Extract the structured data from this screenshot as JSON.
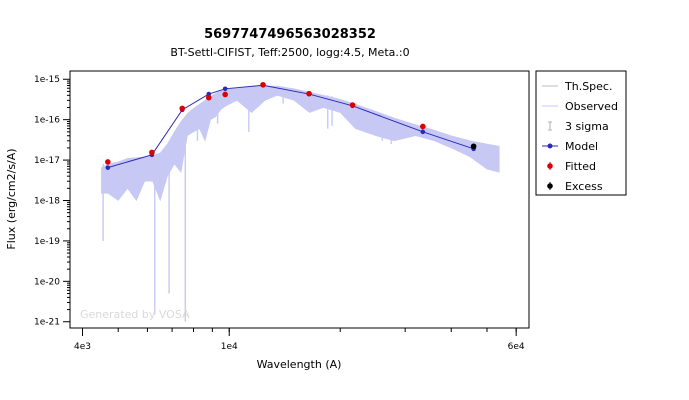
{
  "chart_data": {
    "type": "scatter",
    "title": "5697747496563028352",
    "subtitle": "BT-Settl-CIFIST, Teff:2500, logg:4.5, Meta.:0",
    "xlabel": "Wavelength (A)",
    "ylabel": "Flux (erg/cm2/s/A)",
    "x_scale": "log",
    "y_scale": "log",
    "xlim": [
      3700,
      65000
    ],
    "ylim": [
      7e-22,
      1.6e-15
    ],
    "x_ticks": [
      {
        "value": 4000,
        "label": "4e3"
      },
      {
        "value": 10000,
        "label": "1e4"
      },
      {
        "value": 60000,
        "label": "6e4"
      }
    ],
    "y_ticks": [
      {
        "value": 1e-15,
        "label": "1e-15"
      },
      {
        "value": 1e-16,
        "label": "1e-16"
      },
      {
        "value": 1e-17,
        "label": "1e-17"
      },
      {
        "value": 1e-18,
        "label": "1e-18"
      },
      {
        "value": 1e-19,
        "label": "1e-19"
      },
      {
        "value": 1e-20,
        "label": "1e-20"
      },
      {
        "value": 1e-21,
        "label": "1e-21"
      }
    ],
    "legend": {
      "position": "right",
      "entries": [
        "Th.Spec.",
        "Observed",
        "3 sigma",
        "Model",
        "Fitted",
        "Excess"
      ]
    },
    "colors": {
      "theoretical_spectrum": "#c8c8f5",
      "model": "#2b2bb8",
      "fitted": "#dd0000",
      "excess": "#000000",
      "three_sigma": "#b0b0b0"
    },
    "theoretical_spectrum": {
      "upper": [
        [
          4500,
          6.5e-18
        ],
        [
          4700,
          8e-18
        ],
        [
          5000,
          9e-18
        ],
        [
          5300,
          1.1e-17
        ],
        [
          5600,
          1.15e-17
        ],
        [
          5900,
          1.2e-17
        ],
        [
          6200,
          1.3e-17
        ],
        [
          6500,
          1.5e-17
        ],
        [
          6800,
          2.5e-17
        ],
        [
          7100,
          5e-17
        ],
        [
          7400,
          9e-17
        ],
        [
          7700,
          1.4e-16
        ],
        [
          8000,
          1.9e-16
        ],
        [
          8300,
          2.4e-16
        ],
        [
          8600,
          3e-16
        ],
        [
          8900,
          3.8e-16
        ],
        [
          9200,
          4.5e-16
        ],
        [
          9500,
          5.2e-16
        ],
        [
          9800,
          5.6e-16
        ],
        [
          10500,
          6e-16
        ],
        [
          11500,
          6.5e-16
        ],
        [
          12500,
          6.8e-16
        ],
        [
          13500,
          6.8e-16
        ],
        [
          15000,
          5.8e-16
        ],
        [
          16500,
          4.8e-16
        ],
        [
          18000,
          4e-16
        ],
        [
          20000,
          3.2e-16
        ],
        [
          22000,
          2.4e-16
        ],
        [
          25000,
          1.6e-16
        ],
        [
          28000,
          1.1e-16
        ],
        [
          32000,
          7.5e-17
        ],
        [
          36000,
          5.5e-17
        ],
        [
          40000,
          4e-17
        ],
        [
          45000,
          3e-17
        ],
        [
          50000,
          2.5e-17
        ],
        [
          54000,
          2.2e-17
        ]
      ],
      "lower": [
        [
          4500,
          1.5e-18
        ],
        [
          4700,
          1.5e-18
        ],
        [
          5000,
          1e-18
        ],
        [
          5300,
          2e-18
        ],
        [
          5600,
          1e-18
        ],
        [
          5900,
          3e-18
        ],
        [
          6200,
          3e-18
        ],
        [
          6500,
          1e-18
        ],
        [
          6800,
          4e-18
        ],
        [
          7100,
          8e-18
        ],
        [
          7400,
          5e-18
        ],
        [
          7700,
          4e-17
        ],
        [
          8000,
          5e-17
        ],
        [
          8300,
          6e-17
        ],
        [
          8600,
          3e-17
        ],
        [
          8900,
          1e-16
        ],
        [
          9200,
          1.2e-16
        ],
        [
          9500,
          1.8e-16
        ],
        [
          9800,
          2.2e-16
        ],
        [
          10500,
          3e-16
        ],
        [
          11500,
          1.5e-16
        ],
        [
          12500,
          3e-16
        ],
        [
          13500,
          4e-16
        ],
        [
          15000,
          3e-16
        ],
        [
          16500,
          1.5e-16
        ],
        [
          18000,
          2e-16
        ],
        [
          20000,
          1.5e-16
        ],
        [
          22000,
          6e-17
        ],
        [
          25000,
          4e-17
        ],
        [
          28000,
          3e-17
        ],
        [
          32000,
          4e-17
        ],
        [
          36000,
          3e-17
        ],
        [
          40000,
          2e-17
        ],
        [
          45000,
          1.2e-17
        ],
        [
          50000,
          6e-18
        ],
        [
          54000,
          5e-18
        ]
      ],
      "absorption_lines": [
        [
          4550,
          8e-18,
          1e-19
        ],
        [
          6280,
          1e-17,
          1.5e-21
        ],
        [
          6870,
          2.5e-17,
          5e-21
        ],
        [
          7600,
          1.2e-16,
          1e-21
        ],
        [
          8200,
          2e-16,
          3e-17
        ],
        [
          9300,
          4e-16,
          8e-17
        ],
        [
          11300,
          6e-16,
          5e-17
        ],
        [
          14000,
          6e-16,
          2.5e-16
        ],
        [
          18500,
          4e-16,
          6e-17
        ],
        [
          19000,
          3.8e-16,
          7e-17
        ],
        [
          26000,
          1.4e-16,
          3e-17
        ],
        [
          27500,
          1.2e-16,
          2.5e-17
        ]
      ]
    },
    "series": [
      {
        "name": "Model",
        "points": [
          [
            4686,
            6.5e-18
          ],
          [
            6171,
            1.35e-17
          ],
          [
            7458,
            1.75e-16
          ],
          [
            8800,
            4.3e-16
          ],
          [
            9750,
            5.8e-16
          ],
          [
            12350,
            7.1e-16
          ],
          [
            16460,
            4.3e-16
          ],
          [
            21600,
            2.2e-16
          ],
          [
            33500,
            5e-17
          ],
          [
            46000,
            1.9e-17
          ]
        ]
      },
      {
        "name": "Fitted",
        "points": [
          [
            4686,
            9e-18
          ],
          [
            6171,
            1.55e-17
          ],
          [
            7458,
            1.9e-16
          ],
          [
            8800,
            3.5e-16
          ],
          [
            9750,
            4.2e-16
          ],
          [
            12350,
            7.3e-16
          ],
          [
            16460,
            4.4e-16
          ],
          [
            21600,
            2.3e-16
          ],
          [
            33500,
            6.8e-17
          ]
        ]
      },
      {
        "name": "Excess",
        "points": [
          [
            46000,
            2.2e-17
          ]
        ]
      }
    ]
  },
  "watermark": "Generated by VOSA"
}
